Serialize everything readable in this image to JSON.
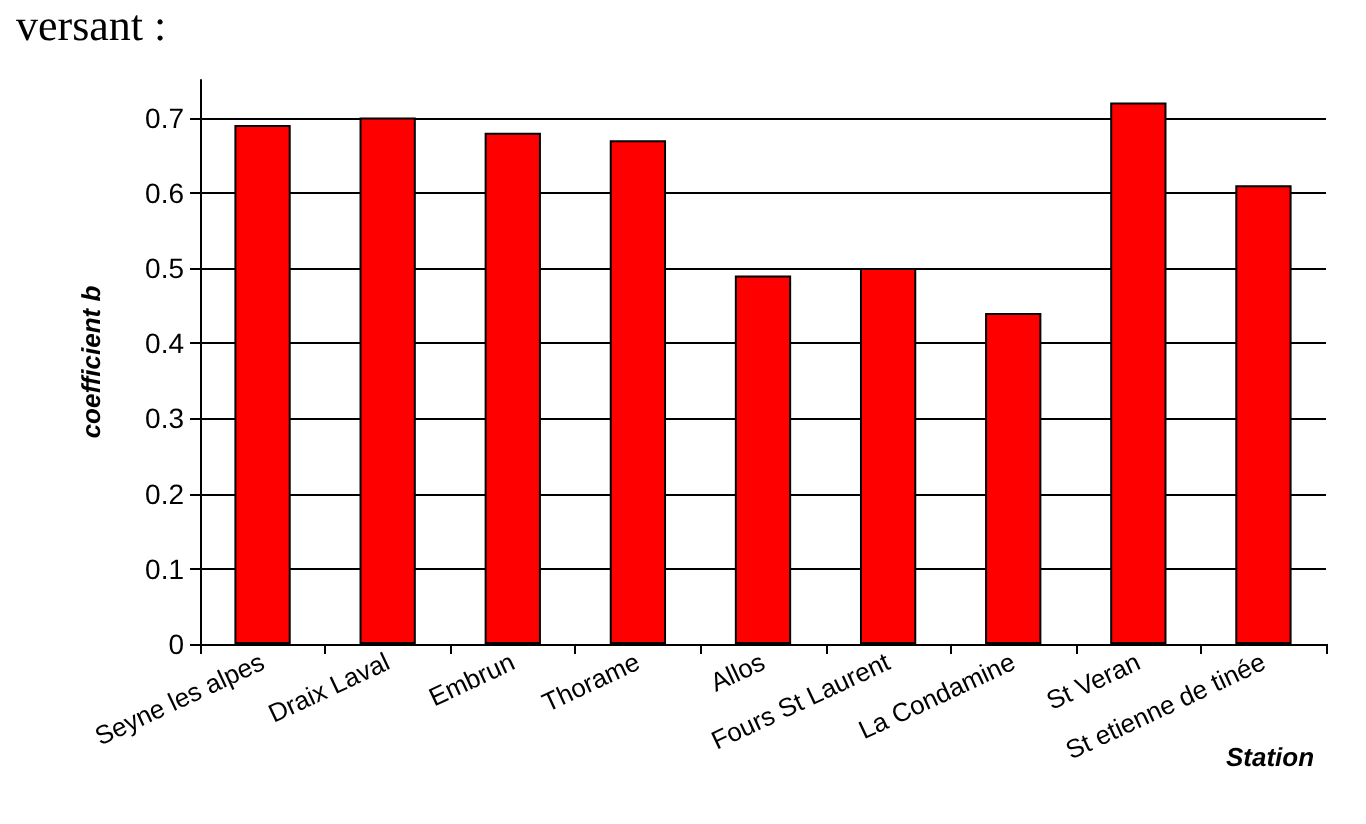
{
  "chart_data": {
    "type": "bar",
    "categories": [
      "Seyne les alpes",
      "Draix Laval",
      "Embrun",
      "Thorame",
      "Allos",
      "Fours St Laurent",
      "La Condamine",
      "St Veran",
      "St etienne de tinée"
    ],
    "values": [
      0.69,
      0.7,
      0.68,
      0.67,
      0.49,
      0.5,
      0.44,
      0.72,
      0.61
    ],
    "color": "#ff0000",
    "xlabel": "Station",
    "ylabel": "coefficient b",
    "annotations": [
      "versant :"
    ],
    "ylim": [
      0,
      0.75
    ],
    "yticks": [
      0,
      0.1,
      0.2,
      0.3,
      0.4,
      0.5,
      0.6,
      0.7
    ],
    "grid": "y"
  }
}
